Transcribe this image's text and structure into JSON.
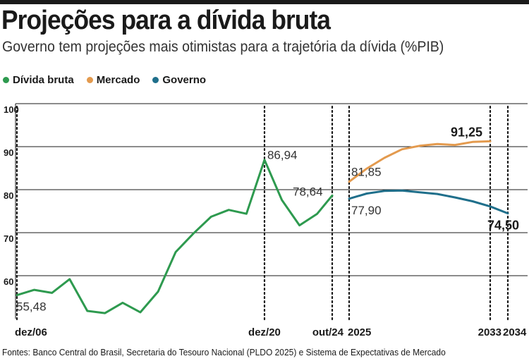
{
  "header": {
    "title": "Projeções para a dívida bruta",
    "subtitle": "Governo tem projeções mais otimistas para a trajetória da dívida (%PIB)"
  },
  "legend": [
    {
      "label": "Dívida bruta",
      "color": "#2e9a4f"
    },
    {
      "label": "Mercado",
      "color": "#e39a4e"
    },
    {
      "label": "Governo",
      "color": "#1f6f8b"
    }
  ],
  "source": "Fontes: Banco Central do Brasil, Secretaria do Tesouro Nacional (PLDO 2025) e Sistema de Expectativas de Mercado",
  "chart_data": {
    "type": "line",
    "ylim": [
      50,
      100
    ],
    "yticks": [
      60,
      70,
      80,
      90,
      100
    ],
    "y_tick_labels": [
      "60",
      "70",
      "80",
      "90",
      "100"
    ],
    "grid": true,
    "legend_position": "top-left",
    "x_labels": [
      {
        "label": "dez/06",
        "x": 2006.92
      },
      {
        "label": "dez/20",
        "x": 2020.92
      },
      {
        "label": "out/24",
        "x": 2024.75
      },
      {
        "label": "2025",
        "x": 2025
      },
      {
        "label": "2033",
        "x": 2033
      },
      {
        "label": "2034",
        "x": 2034
      }
    ],
    "series": [
      {
        "name": "Dívida bruta",
        "color": "#2e9a4f",
        "segment": "historical",
        "points": [
          {
            "x": 2006.92,
            "y": 55.48
          },
          {
            "x": 2007.9,
            "y": 56.7
          },
          {
            "x": 2008.9,
            "y": 56.0
          },
          {
            "x": 2009.9,
            "y": 59.2
          },
          {
            "x": 2010.9,
            "y": 51.8
          },
          {
            "x": 2011.9,
            "y": 51.3
          },
          {
            "x": 2012.9,
            "y": 53.7
          },
          {
            "x": 2013.9,
            "y": 51.5
          },
          {
            "x": 2014.9,
            "y": 56.3
          },
          {
            "x": 2015.9,
            "y": 65.5
          },
          {
            "x": 2016.9,
            "y": 69.8
          },
          {
            "x": 2017.9,
            "y": 73.7
          },
          {
            "x": 2018.9,
            "y": 75.3
          },
          {
            "x": 2019.9,
            "y": 74.4
          },
          {
            "x": 2020.92,
            "y": 86.94
          },
          {
            "x": 2021.9,
            "y": 77.6
          },
          {
            "x": 2022.9,
            "y": 71.7
          },
          {
            "x": 2023.9,
            "y": 74.4
          },
          {
            "x": 2024.75,
            "y": 78.64
          }
        ]
      },
      {
        "name": "Mercado",
        "color": "#e39a4e",
        "segment": "projection",
        "points": [
          {
            "x": 2025,
            "y": 81.85
          },
          {
            "x": 2026,
            "y": 84.9
          },
          {
            "x": 2027,
            "y": 87.4
          },
          {
            "x": 2028,
            "y": 89.4
          },
          {
            "x": 2029,
            "y": 90.2
          },
          {
            "x": 2030,
            "y": 90.6
          },
          {
            "x": 2031,
            "y": 90.4
          },
          {
            "x": 2032,
            "y": 91.1
          },
          {
            "x": 2033,
            "y": 91.25
          }
        ]
      },
      {
        "name": "Governo",
        "color": "#1f6f8b",
        "segment": "projection",
        "points": [
          {
            "x": 2025,
            "y": 77.9
          },
          {
            "x": 2026,
            "y": 79.1
          },
          {
            "x": 2027,
            "y": 79.7
          },
          {
            "x": 2028,
            "y": 79.8
          },
          {
            "x": 2029,
            "y": 79.4
          },
          {
            "x": 2030,
            "y": 79.0
          },
          {
            "x": 2031,
            "y": 78.2
          },
          {
            "x": 2032,
            "y": 77.3
          },
          {
            "x": 2033,
            "y": 76.1
          },
          {
            "x": 2034,
            "y": 74.5
          }
        ]
      }
    ],
    "annotations": [
      {
        "text": "55,48",
        "x": 2006.92,
        "y": 55.48,
        "bold": false
      },
      {
        "text": "86,94",
        "x": 2020.92,
        "y": 86.94,
        "bold": false
      },
      {
        "text": "78,64",
        "x": 2024.75,
        "y": 78.64,
        "bold": false
      },
      {
        "text": "81,85",
        "x": 2025,
        "y": 81.85,
        "bold": false
      },
      {
        "text": "77,90",
        "x": 2025,
        "y": 77.9,
        "bold": false
      },
      {
        "text": "91,25",
        "x": 2033,
        "y": 91.25,
        "bold": true
      },
      {
        "text": "74,50",
        "x": 2034,
        "y": 74.5,
        "bold": true
      }
    ],
    "vertical_markers": [
      2006.92,
      2020.92,
      2024.75,
      2025,
      2033,
      2034
    ]
  }
}
